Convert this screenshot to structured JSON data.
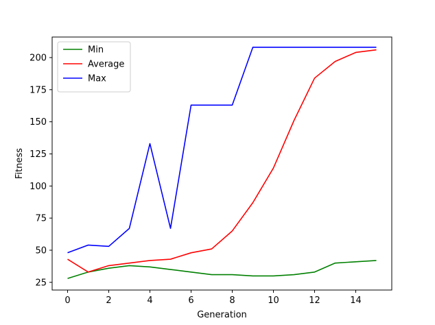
{
  "chart_data": {
    "type": "line",
    "xlabel": "Generation",
    "ylabel": "Fitness",
    "x": [
      0,
      1,
      2,
      3,
      4,
      5,
      6,
      7,
      8,
      9,
      10,
      11,
      12,
      13,
      14,
      15
    ],
    "xlim": [
      -0.75,
      15.75
    ],
    "ylim": [
      19,
      216
    ],
    "xticks": [
      0,
      2,
      4,
      6,
      8,
      10,
      12,
      14
    ],
    "yticks": [
      25,
      50,
      75,
      100,
      125,
      150,
      175,
      200
    ],
    "grid": false,
    "legend_position": "upper-left",
    "series": [
      {
        "name": "Min",
        "color": "#008000",
        "values": [
          28,
          33,
          36,
          38,
          37,
          35,
          33,
          31,
          31,
          30,
          30,
          31,
          33,
          40,
          41,
          42
        ]
      },
      {
        "name": "Average",
        "color": "#ff0000",
        "values": [
          43,
          33,
          38,
          40,
          42,
          43,
          48,
          51,
          65,
          87,
          114,
          151,
          184,
          197,
          204,
          206
        ]
      },
      {
        "name": "Max",
        "color": "#0000ff",
        "values": [
          48,
          54,
          53,
          67,
          133,
          67,
          163,
          163,
          163,
          208,
          208,
          208,
          208,
          208,
          208,
          208
        ]
      }
    ]
  }
}
